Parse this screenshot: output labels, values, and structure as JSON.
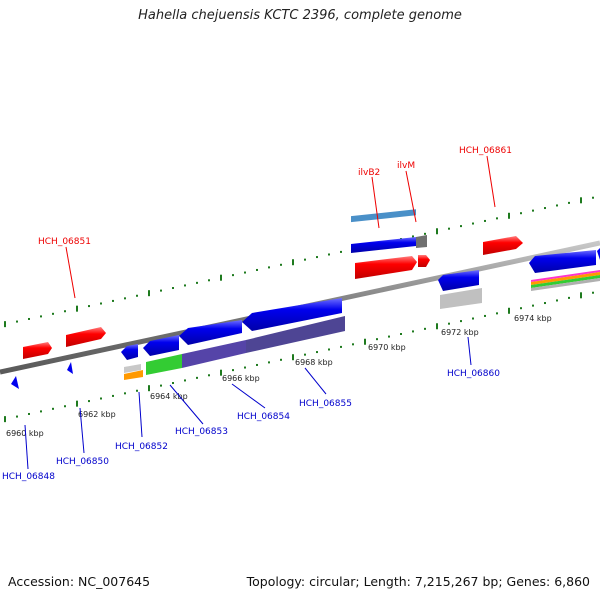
{
  "title": "Hahella chejuensis KCTC 2396, complete genome",
  "footer": {
    "accession": "Accession: NC_007645",
    "summary": "Topology: circular; Length: 7,215,267 bp; Genes: 6,860"
  },
  "colors": {
    "forward": "#ff0000",
    "reverse": "#0000ff",
    "backbone": "#8a8a8a",
    "tick": "#1e7a1e"
  },
  "ticks": {
    "lower": [
      "6960 kbp",
      "6962 kbp",
      "6964 kbp",
      "6966 kbp",
      "6968 kbp",
      "6970 kbp",
      "6972 kbp",
      "6974 kbp"
    ]
  },
  "labels": {
    "forward": [
      "HCH_06851",
      "ilvB2",
      "ilvM",
      "HCH_06861"
    ],
    "reverse": [
      "HCH_06848",
      "HCH_06850",
      "HCH_06852",
      "HCH_06853",
      "HCH_06854",
      "HCH_06855",
      "HCH_06860"
    ]
  }
}
